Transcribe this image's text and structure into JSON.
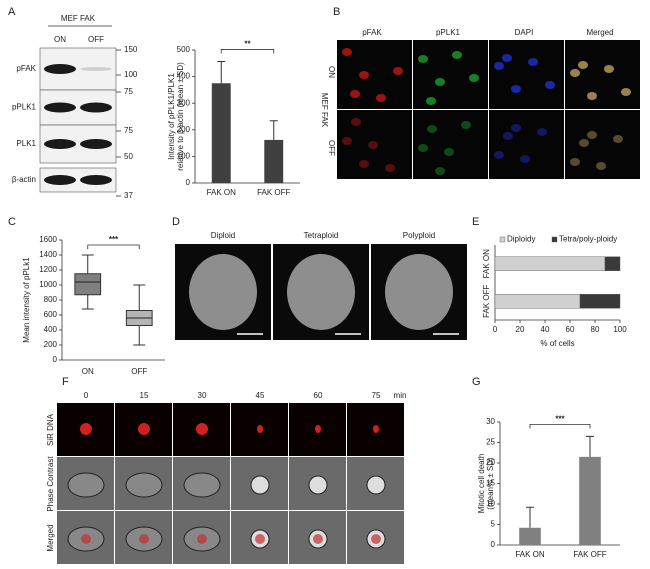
{
  "panel_letters": [
    "A",
    "B",
    "C",
    "D",
    "E",
    "F",
    "G"
  ],
  "blot": {
    "title": "MEF FAK",
    "lanes": [
      "ON",
      "OFF"
    ],
    "rows": [
      "pFAK",
      "pPLK1",
      "PLK1",
      "β-actin"
    ],
    "markers": [
      150,
      100,
      75,
      75,
      50,
      37
    ]
  },
  "microscopy": {
    "channels": [
      "pFAK",
      "pPLK1",
      "DAPI",
      "Merged"
    ],
    "group": "MEF FAK",
    "conditions": [
      "ON",
      "OFF"
    ]
  },
  "chromosomes": {
    "labels": [
      "Diploid",
      "Tetraploid",
      "Polyploid"
    ]
  },
  "timelapse": {
    "times": [
      0,
      15,
      30,
      45,
      60,
      75
    ],
    "unit": "min",
    "rows": [
      "SiR DNA",
      "Phase Contrast",
      "Merged"
    ]
  },
  "chart_data": [
    {
      "type": "bar",
      "ylabel": [
        "Intensity of pPLK1/PLK1",
        "relative to β-actin (mean ± SD)"
      ],
      "categories": [
        "FAK ON",
        "FAK OFF"
      ],
      "values": [
        375,
        162
      ],
      "errors": [
        82,
        72
      ],
      "color": "#404040",
      "ylim": [
        0,
        500
      ],
      "yticks": [
        0,
        100,
        200,
        300,
        400,
        500
      ],
      "annotation": "**"
    },
    {
      "type": "box",
      "ylabel": "Mean intensity of pPLk1",
      "categories": [
        "ON",
        "OFF"
      ],
      "boxes": [
        {
          "min": 680,
          "q1": 870,
          "median": 1040,
          "q3": 1150,
          "max": 1400
        },
        {
          "min": 200,
          "q1": 460,
          "median": 560,
          "q3": 660,
          "max": 1000
        }
      ],
      "colors": [
        "#7f7f7f",
        "#b4b4b4"
      ],
      "ylim": [
        0,
        1600
      ],
      "yticks": [
        0,
        200,
        400,
        600,
        800,
        1000,
        1200,
        1400,
        1600
      ],
      "annotation": "***"
    },
    {
      "type": "hbar_stacked",
      "categories": [
        "FAK ON",
        "FAK OFF"
      ],
      "series": [
        {
          "name": "Diploidy",
          "color": "#d0d0d0",
          "values": [
            88,
            68
          ]
        },
        {
          "name": "Tetra/poly-ploidy",
          "color": "#3a3a3a",
          "values": [
            12,
            32
          ]
        }
      ],
      "xlim": [
        0,
        100
      ],
      "xticks": [
        0,
        20,
        40,
        60,
        80,
        100
      ],
      "xlabel": "% of cells"
    },
    {
      "type": "bar",
      "ylabel": [
        "Mitotic cell death",
        "(mean% ± SD)"
      ],
      "categories": [
        "FAK ON",
        "FAK OFF"
      ],
      "values": [
        4.2,
        21.5
      ],
      "errors": [
        5,
        5
      ],
      "color": "#808080",
      "ylim": [
        0,
        30
      ],
      "yticks": [
        0,
        5,
        10,
        15,
        20,
        25,
        30
      ],
      "annotation": "***"
    }
  ]
}
